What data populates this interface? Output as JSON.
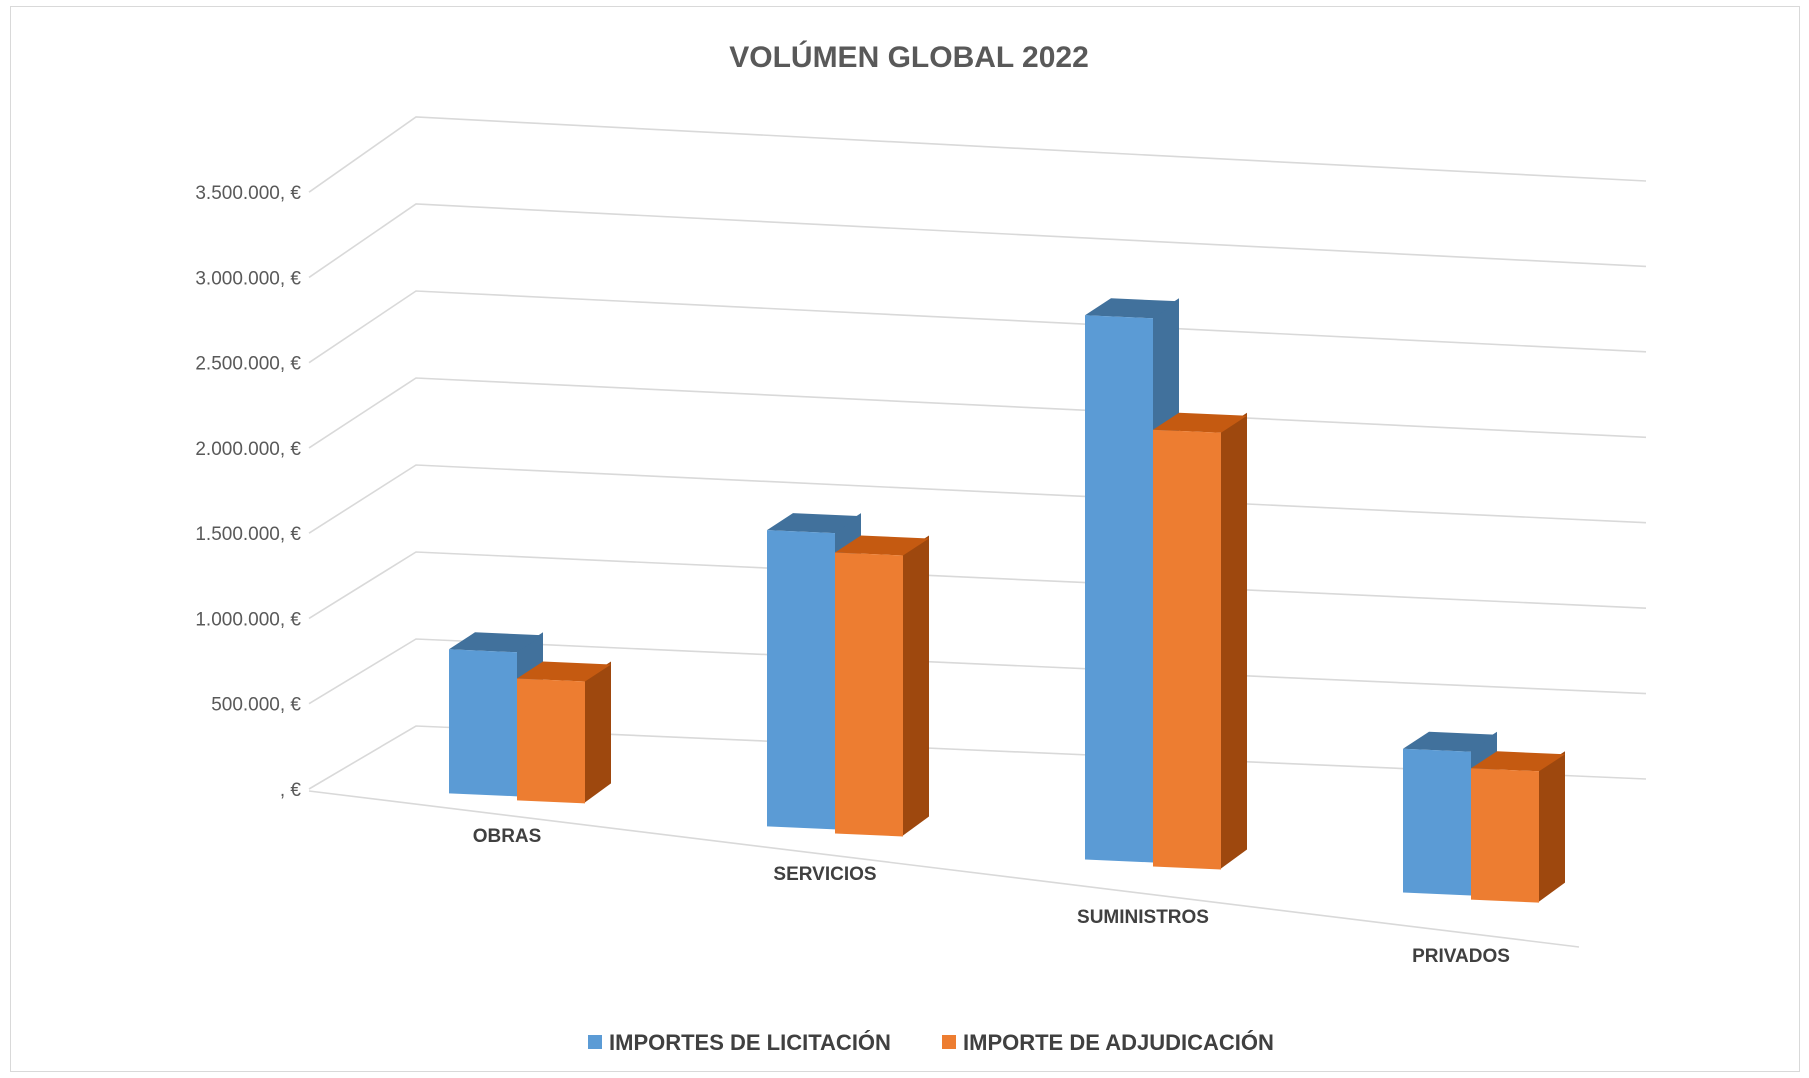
{
  "chart_data": {
    "type": "bar",
    "style": "3d-clustered-column",
    "title": "VOLÚMEN GLOBAL 2022",
    "categories": [
      "OBRAS",
      "SERVICIOS",
      "SUMINISTROS",
      "PRIVADOS"
    ],
    "series": [
      {
        "name": "IMPORTES DE LICITACIÓN",
        "values": [
          800000,
          1680000,
          3150000,
          850000
        ],
        "color": "#5b9bd5",
        "top_color": "#41719c",
        "side_color": "#41719c"
      },
      {
        "name": "IMPORTE DE ADJUDICACIÓN",
        "values": [
          680000,
          1600000,
          2540000,
          780000
        ],
        "color": "#ed7d31",
        "top_color": "#c55a11",
        "side_color": "#9e480e"
      }
    ],
    "y_ticks": [
      ", €",
      "500.000, €",
      "1.000.000, €",
      "1.500.000, €",
      "2.000.000, €",
      "2.500.000, €",
      "3.000.000, €",
      "3.500.000, €"
    ],
    "ylim": [
      0,
      3500000
    ],
    "ystep": 500000,
    "grid": true,
    "legend": "bottom",
    "grid_color": "#d9d9d9",
    "text_color": "#595959"
  }
}
